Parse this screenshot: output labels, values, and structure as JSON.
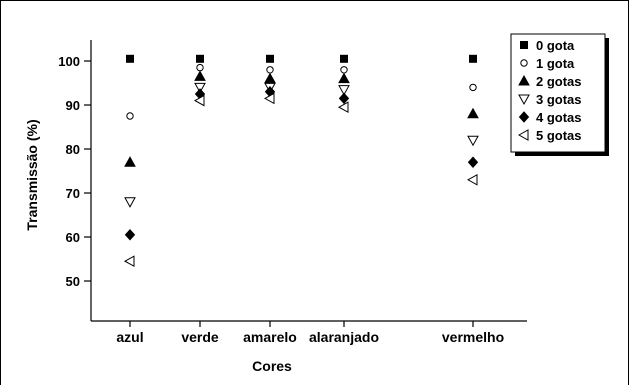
{
  "chart_data": {
    "type": "scatter",
    "title": "",
    "xlabel": "Cores",
    "ylabel": "Transmissão (%)",
    "categories": [
      "azul",
      "verde",
      "amarelo",
      "alaranjado",
      "vermelho"
    ],
    "yticks": [
      50,
      60,
      70,
      80,
      90,
      100
    ],
    "ylim": [
      40,
      105
    ],
    "grid": false,
    "legend_position": "top-right",
    "series": [
      {
        "name": "0 gota",
        "marker": "square-filled",
        "values": [
          100.5,
          100.5,
          100.5,
          100.5,
          100.5
        ]
      },
      {
        "name": "1 gota",
        "marker": "circle-open",
        "values": [
          87.5,
          98.5,
          98.0,
          98.0,
          94.0
        ]
      },
      {
        "name": "2 gotas",
        "marker": "triangle-up-filled",
        "values": [
          77.0,
          96.5,
          96.0,
          96.0,
          88.0
        ]
      },
      {
        "name": "3 gotas",
        "marker": "triangle-down-open",
        "values": [
          68.0,
          94.0,
          94.0,
          93.5,
          82.0
        ]
      },
      {
        "name": "4 gotas",
        "marker": "diamond-filled",
        "values": [
          60.5,
          92.5,
          93.0,
          91.5,
          77.0
        ]
      },
      {
        "name": "5 gotas",
        "marker": "triangle-left-open",
        "values": [
          54.5,
          91.0,
          91.5,
          89.5,
          73.0
        ]
      }
    ]
  }
}
